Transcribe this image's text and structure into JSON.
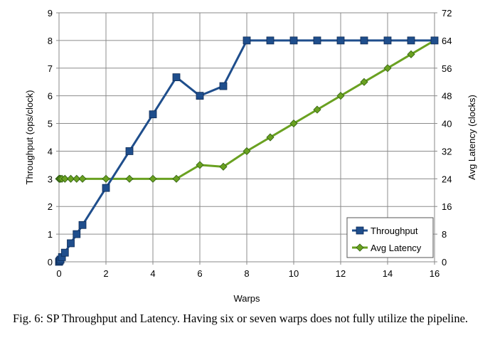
{
  "chart_data": {
    "type": "line",
    "xlabel": "Warps",
    "ylabel": "Throughput (ops/clock)",
    "y2label": "Avg Latency (clocks)",
    "xlim": [
      0,
      16
    ],
    "ylim": [
      0,
      9
    ],
    "y2lim": [
      0,
      72
    ],
    "x_ticks": [
      "0",
      "2",
      "4",
      "6",
      "8",
      "10",
      "12",
      "14",
      "16"
    ],
    "y_ticks": [
      "0",
      "1",
      "2",
      "3",
      "4",
      "5",
      "6",
      "7",
      "8",
      "9"
    ],
    "y2_ticks": [
      "0",
      "8",
      "16",
      "24",
      "32",
      "40",
      "48",
      "56",
      "64",
      "72"
    ],
    "grid": true,
    "legend_position": "bottom-right",
    "series": [
      {
        "name": "Throughput",
        "axis": "left",
        "color": "#1F4E8C",
        "marker": "square",
        "x": [
          0,
          0.03125,
          0.0625,
          0.125,
          0.25,
          0.5,
          0.75,
          1,
          2,
          3,
          4,
          5,
          6,
          7,
          8,
          9,
          10,
          11,
          12,
          13,
          14,
          15,
          16
        ],
        "values": [
          0,
          0.04,
          0.08,
          0.17,
          0.33,
          0.67,
          1.0,
          1.33,
          2.67,
          4.0,
          5.33,
          6.67,
          6.0,
          6.35,
          8,
          8,
          8,
          8,
          8,
          8,
          8,
          8,
          8
        ]
      },
      {
        "name": "Avg Latency",
        "axis": "right",
        "color": "#6AA121",
        "marker": "diamond",
        "x": [
          0,
          0.03125,
          0.0625,
          0.125,
          0.25,
          0.5,
          0.75,
          1,
          2,
          3,
          4,
          5,
          6,
          7,
          8,
          9,
          10,
          11,
          12,
          13,
          14,
          15,
          16
        ],
        "values": [
          24,
          24,
          24,
          24,
          24,
          24,
          24,
          24,
          24,
          24,
          24,
          24,
          28,
          27.5,
          32,
          36,
          40,
          44,
          48,
          52,
          56,
          60,
          64
        ]
      }
    ]
  },
  "caption": "Fig. 6: SP Throughput and Latency. Having six or seven warps does not fully utilize the pipeline."
}
